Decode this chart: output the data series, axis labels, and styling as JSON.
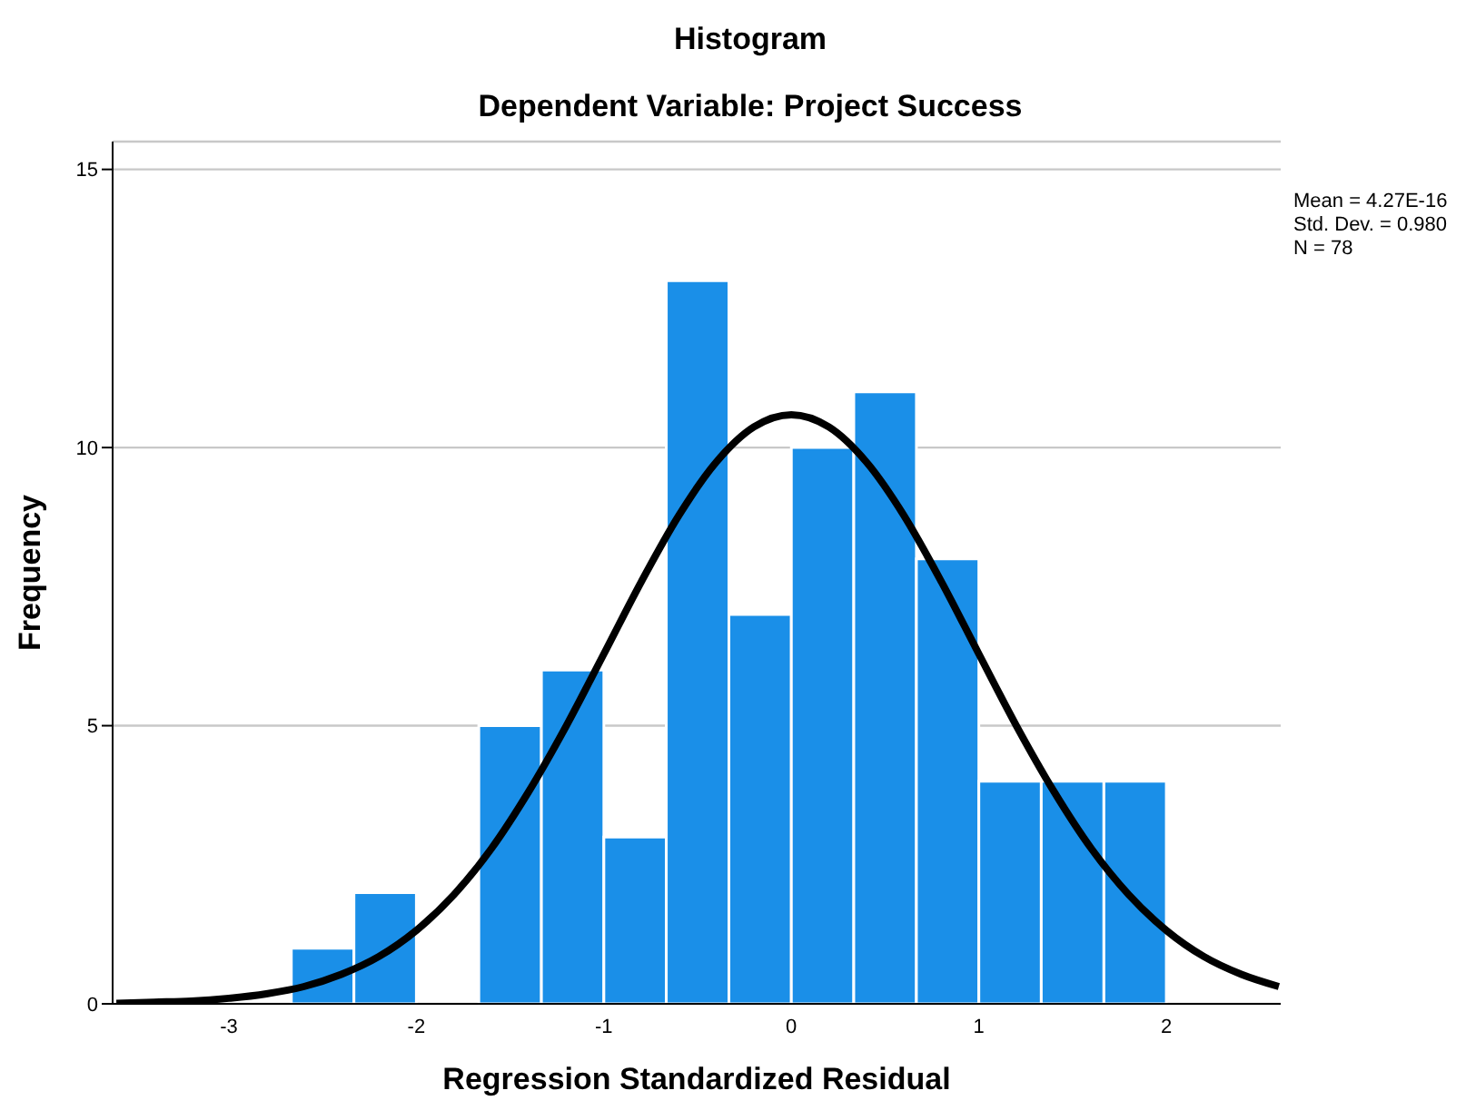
{
  "chart_data": {
    "type": "histogram",
    "title": "Histogram",
    "subtitle": "Dependent Variable: Project Success",
    "xlabel": "Regression Standardized Residual",
    "ylabel": "Frequency",
    "bins": [
      -2.667,
      -2.333,
      -2,
      -1.667,
      -1.333,
      -1,
      -0.667,
      -0.333,
      0,
      0.333,
      0.667,
      1,
      1.333,
      1.667,
      2
    ],
    "values": [
      1,
      2,
      0,
      5,
      6,
      3,
      13,
      7,
      10,
      11,
      8,
      4,
      4,
      4
    ],
    "color": "#1a8fe8",
    "series": [
      {
        "type": "line",
        "color": "#000000",
        "x": [
          -3.6,
          -3.4,
          -3.2,
          -3.0,
          -2.8,
          -2.6,
          -2.4,
          -2.2,
          -2.0,
          -1.8,
          -1.6,
          -1.4,
          -1.2,
          -1.0,
          -0.8,
          -0.6,
          -0.4,
          -0.2,
          0,
          0.2,
          0.4,
          0.6,
          0.8,
          1.0,
          1.2,
          1.4,
          1.6,
          1.8,
          2.0,
          2.2,
          2.4,
          2.6
        ],
        "values": [
          0.01,
          0.03,
          0.05,
          0.1,
          0.18,
          0.31,
          0.53,
          0.85,
          1.32,
          1.96,
          2.79,
          3.82,
          5.0,
          6.29,
          7.59,
          8.78,
          9.74,
          10.37,
          10.59,
          10.37,
          9.74,
          8.78,
          7.59,
          6.29,
          5.0,
          3.82,
          2.79,
          1.96,
          1.32,
          0.85,
          0.53,
          0.31
        ]
      }
    ],
    "annotations": [
      "Mean = 4.27E-16",
      "Std. Dev. = 0.980",
      "N = 78"
    ],
    "xlim": [
      -3.62,
      2.61
    ],
    "ylim": [
      0,
      15.5
    ],
    "xticks": [
      -3,
      -2,
      -1,
      0,
      1,
      2
    ],
    "yticks": [
      0,
      5,
      10,
      15
    ],
    "grid": "y"
  }
}
